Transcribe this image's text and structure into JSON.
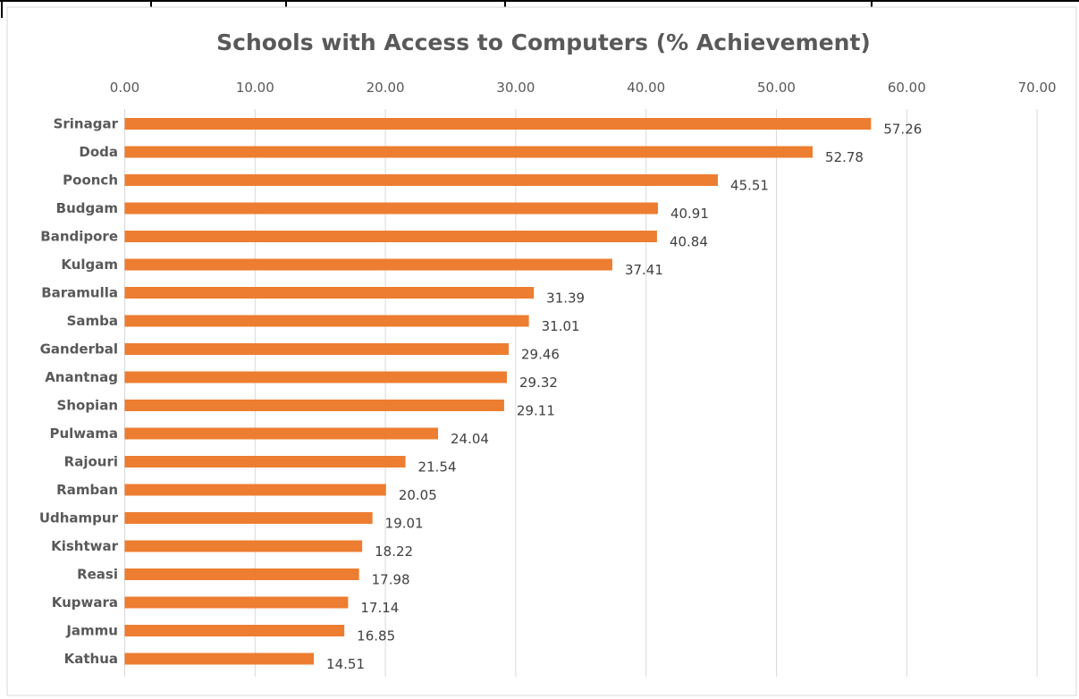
{
  "chart_data": {
    "type": "bar",
    "orientation": "horizontal",
    "title": "Schools with Access to Computers (% Achievement)",
    "xlabel": "",
    "ylabel": "",
    "xlim": [
      0,
      70
    ],
    "x_ticks": [
      "0.00",
      "10.00",
      "20.00",
      "30.00",
      "40.00",
      "50.00",
      "60.00",
      "70.00"
    ],
    "axis_position": "top",
    "grid": true,
    "legend": "none",
    "bar_color": "#ED7D31",
    "categories": [
      "Srinagar",
      "Doda",
      "Poonch",
      "Budgam",
      "Bandipore",
      "Kulgam",
      "Baramulla",
      "Samba",
      "Ganderbal",
      "Anantnag",
      "Shopian",
      "Pulwama",
      "Rajouri",
      "Ramban",
      "Udhampur",
      "Kishtwar",
      "Reasi",
      "Kupwara",
      "Jammu",
      "Kathua"
    ],
    "values": [
      57.26,
      52.78,
      45.51,
      40.91,
      40.84,
      37.41,
      31.39,
      31.01,
      29.46,
      29.32,
      29.11,
      24.04,
      21.54,
      20.05,
      19.01,
      18.22,
      17.98,
      17.14,
      16.85,
      14.51
    ],
    "value_labels": [
      "57.26",
      "52.78",
      "45.51",
      "40.91",
      "40.84",
      "37.41",
      "31.39",
      "31.01",
      "29.46",
      "29.32",
      "29.11",
      "24.04",
      "21.54",
      "20.05",
      "19.01",
      "18.22",
      "17.98",
      "17.14",
      "16.85",
      "14.51"
    ]
  }
}
